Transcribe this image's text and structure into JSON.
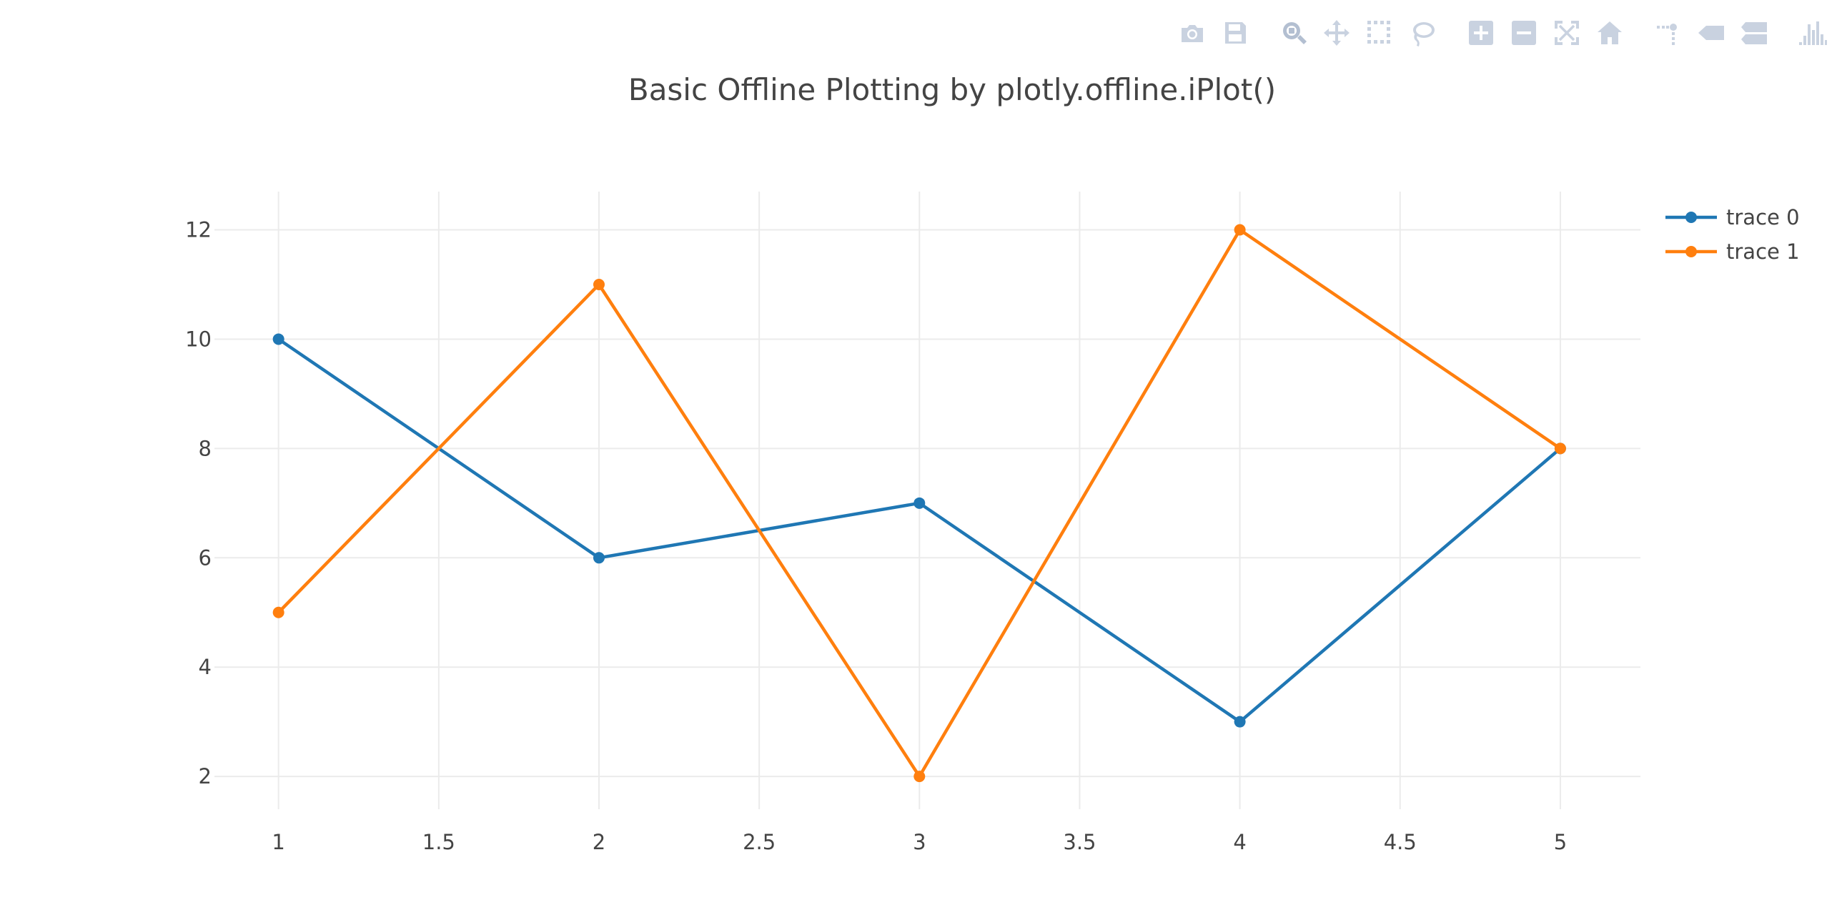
{
  "modebar": {
    "buttons": [
      {
        "name": "camera-icon",
        "title": "Download plot as a png"
      },
      {
        "name": "save-icon",
        "title": "Save and edit plot in cloud"
      },
      {
        "name": "zoom-icon",
        "title": "Zoom"
      },
      {
        "name": "pan-icon",
        "title": "Pan"
      },
      {
        "name": "box-select-icon",
        "title": "Box Select"
      },
      {
        "name": "lasso-select-icon",
        "title": "Lasso Select"
      },
      {
        "name": "zoom-in-icon",
        "title": "Zoom in"
      },
      {
        "name": "zoom-out-icon",
        "title": "Zoom out"
      },
      {
        "name": "autoscale-icon",
        "title": "Autoscale"
      },
      {
        "name": "reset-axes-icon",
        "title": "Reset axes"
      },
      {
        "name": "spike-lines-icon",
        "title": "Toggle Spike Lines"
      },
      {
        "name": "hover-closest-icon",
        "title": "Show closest data on hover"
      },
      {
        "name": "hover-compare-icon",
        "title": "Compare data on hover"
      },
      {
        "name": "plotly-logo-icon",
        "title": "Produced with Plotly"
      }
    ]
  },
  "chart_data": {
    "type": "line",
    "title": "Basic Offline Plotting by plotly.offline.iPlot()",
    "xlabel": "",
    "ylabel": "",
    "xlim": [
      0.8,
      5.25
    ],
    "ylim": [
      1.4,
      12.7
    ],
    "x_ticks": [
      1,
      1.5,
      2,
      2.5,
      3,
      3.5,
      4,
      4.5,
      5
    ],
    "x_tick_labels": [
      "1",
      "1.5",
      "2",
      "2.5",
      "3",
      "3.5",
      "4",
      "4.5",
      "5"
    ],
    "y_ticks": [
      2,
      4,
      6,
      8,
      10,
      12
    ],
    "y_tick_labels": [
      "2",
      "4",
      "6",
      "8",
      "10",
      "12"
    ],
    "grid": true,
    "legend_position": "top-right",
    "series": [
      {
        "name": "trace 0",
        "color": "#1f77b4",
        "x": [
          1,
          2,
          3,
          4,
          5
        ],
        "y": [
          10,
          6,
          7,
          3,
          8
        ]
      },
      {
        "name": "trace 1",
        "color": "#ff7f0e",
        "x": [
          1,
          2,
          3,
          4,
          5
        ],
        "y": [
          5,
          11,
          2,
          12,
          8
        ]
      }
    ]
  }
}
